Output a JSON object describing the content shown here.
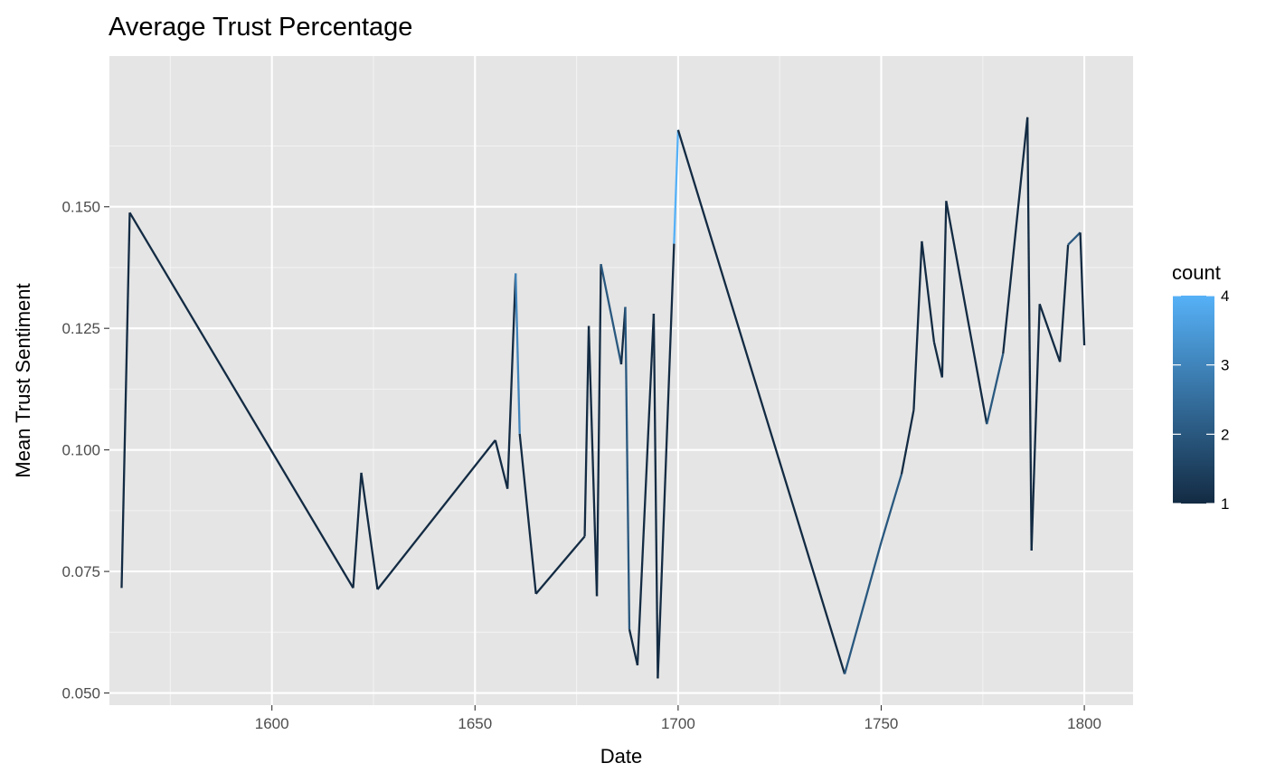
{
  "chart_data": {
    "type": "line",
    "title": "Average Trust Percentage",
    "xlabel": "Date",
    "ylabel": "Mean Trust Sentiment",
    "xlim": [
      1560,
      1812
    ],
    "ylim": [
      0.0475,
      0.181
    ],
    "x_major_ticks": [
      1600,
      1650,
      1700,
      1750,
      1800
    ],
    "x_tick_labels": [
      "1600",
      "1650",
      "1700",
      "1750",
      "1800"
    ],
    "x_minor_ticks": [
      1575,
      1625,
      1675,
      1725,
      1775
    ],
    "y_major_ticks": [
      0.05,
      0.075,
      0.1,
      0.125,
      0.15
    ],
    "y_tick_labels": [
      "0.050",
      "0.075",
      "0.100",
      "0.125",
      "0.150"
    ],
    "y_minor_ticks": [
      0.0625,
      0.0875,
      0.1125,
      0.1375,
      0.1625
    ],
    "grid": true,
    "color_scale": {
      "name": "count",
      "min": 1,
      "max": 4,
      "low_color": "#132B43",
      "high_color": "#56B1F7",
      "breaks": [
        1,
        2,
        3,
        4
      ],
      "break_labels": [
        "1",
        "2",
        "3",
        "4"
      ]
    },
    "legend_position": "right",
    "points": [
      {
        "x": 1563,
        "y": 0.0716,
        "count": 1
      },
      {
        "x": 1565,
        "y": 0.1488,
        "count": 1
      },
      {
        "x": 1620,
        "y": 0.0716,
        "count": 1
      },
      {
        "x": 1622,
        "y": 0.0953,
        "count": 1
      },
      {
        "x": 1626,
        "y": 0.0713,
        "count": 1
      },
      {
        "x": 1655,
        "y": 0.102,
        "count": 1
      },
      {
        "x": 1658,
        "y": 0.092,
        "count": 1
      },
      {
        "x": 1660,
        "y": 0.1363,
        "count": 3
      },
      {
        "x": 1661,
        "y": 0.1033,
        "count": 1
      },
      {
        "x": 1665,
        "y": 0.0704,
        "count": 1
      },
      {
        "x": 1677,
        "y": 0.0822,
        "count": 1
      },
      {
        "x": 1678,
        "y": 0.1255,
        "count": 1
      },
      {
        "x": 1680,
        "y": 0.0699,
        "count": 1
      },
      {
        "x": 1681,
        "y": 0.1382,
        "count": 2
      },
      {
        "x": 1686,
        "y": 0.1176,
        "count": 1
      },
      {
        "x": 1687,
        "y": 0.1294,
        "count": 2
      },
      {
        "x": 1688,
        "y": 0.0631,
        "count": 1
      },
      {
        "x": 1690,
        "y": 0.0557,
        "count": 1
      },
      {
        "x": 1694,
        "y": 0.128,
        "count": 1
      },
      {
        "x": 1695,
        "y": 0.053,
        "count": 1
      },
      {
        "x": 1699,
        "y": 0.1424,
        "count": 4
      },
      {
        "x": 1700,
        "y": 0.1658,
        "count": 1
      },
      {
        "x": 1741,
        "y": 0.0539,
        "count": 2
      },
      {
        "x": 1750,
        "y": 0.081,
        "count": 2
      },
      {
        "x": 1755,
        "y": 0.095,
        "count": 1
      },
      {
        "x": 1758,
        "y": 0.1082,
        "count": 1
      },
      {
        "x": 1760,
        "y": 0.1429,
        "count": 1
      },
      {
        "x": 1763,
        "y": 0.1222,
        "count": 1
      },
      {
        "x": 1765,
        "y": 0.1149,
        "count": 1
      },
      {
        "x": 1766,
        "y": 0.1512,
        "count": 1
      },
      {
        "x": 1776,
        "y": 0.1053,
        "count": 2
      },
      {
        "x": 1780,
        "y": 0.1198,
        "count": 1
      },
      {
        "x": 1786,
        "y": 0.1684,
        "count": 1
      },
      {
        "x": 1787,
        "y": 0.0793,
        "count": 1
      },
      {
        "x": 1789,
        "y": 0.13,
        "count": 1
      },
      {
        "x": 1794,
        "y": 0.1181,
        "count": 1
      },
      {
        "x": 1796,
        "y": 0.1422,
        "count": 2
      },
      {
        "x": 1799,
        "y": 0.1447,
        "count": 1
      },
      {
        "x": 1800,
        "y": 0.1215,
        "count": 1
      }
    ]
  }
}
